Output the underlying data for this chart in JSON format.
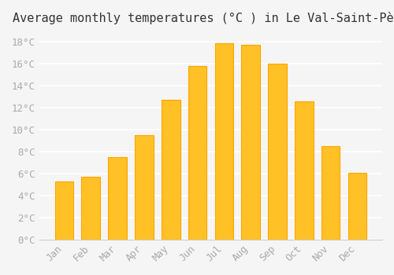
{
  "title": "Average monthly temperatures (°C ) in Le Val-Saint-Père",
  "months": [
    "Jan",
    "Feb",
    "Mar",
    "Apr",
    "May",
    "Jun",
    "Jul",
    "Aug",
    "Sep",
    "Oct",
    "Nov",
    "Dec"
  ],
  "values": [
    5.3,
    5.7,
    7.5,
    9.5,
    12.7,
    15.8,
    17.9,
    17.7,
    16.0,
    12.6,
    8.5,
    6.1
  ],
  "bar_color": "#FFC125",
  "bar_edge_color": "#FFA500",
  "background_color": "#F5F5F5",
  "grid_color": "#FFFFFF",
  "tick_color": "#AAAAAA",
  "title_fontsize": 11,
  "tick_fontsize": 9,
  "ylim": [
    0,
    19
  ],
  "yticks": [
    0,
    2,
    4,
    6,
    8,
    10,
    12,
    14,
    16,
    18
  ]
}
